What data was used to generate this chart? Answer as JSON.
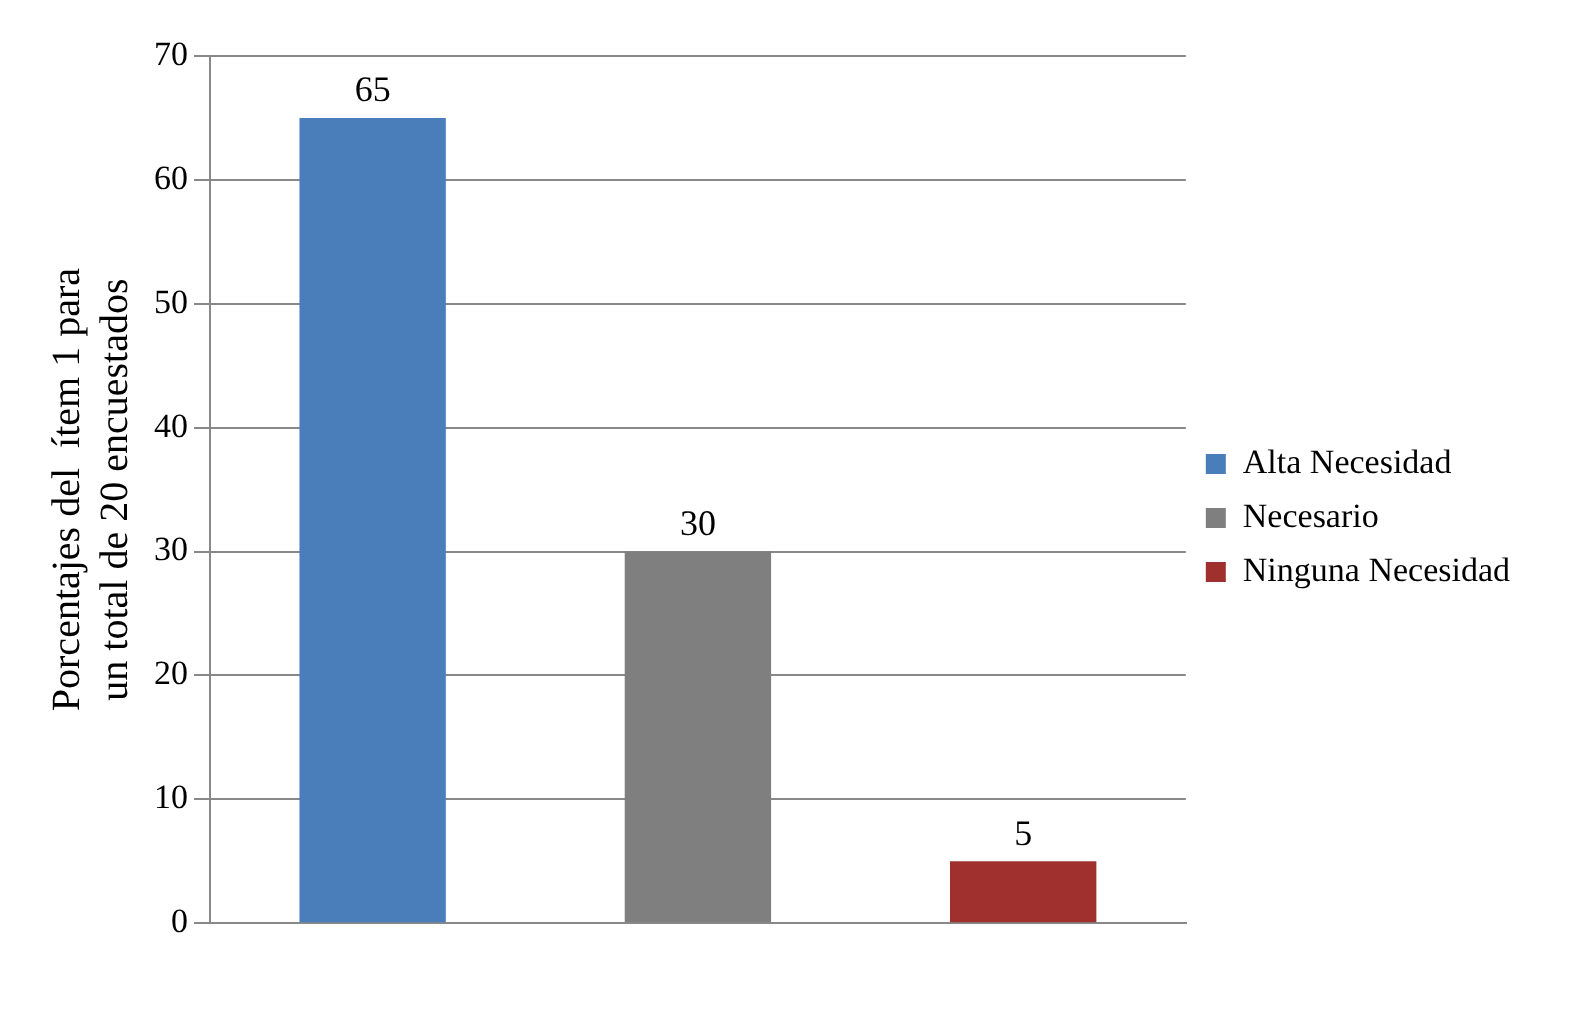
{
  "chart_data": {
    "type": "bar",
    "ylabel": "Porcentajes del  ítem 1 para un total de 20 encuestados",
    "categories": [
      null,
      null,
      null
    ],
    "series": [
      {
        "name": "Alta Necesidad",
        "color": "#4a7ebb",
        "values": [
          65,
          null,
          null
        ]
      },
      {
        "name": "Necesario",
        "color": "#7f7f7f",
        "values": [
          null,
          30,
          null
        ]
      },
      {
        "name": "Ninguna Necesidad",
        "color": "#a0302e",
        "values": [
          null,
          null,
          5
        ]
      }
    ],
    "ylim": [
      0,
      70
    ],
    "yticks": [
      0,
      10,
      20,
      30,
      40,
      50,
      60,
      70
    ],
    "grid": "y",
    "legend": "right",
    "data_labels": true
  }
}
